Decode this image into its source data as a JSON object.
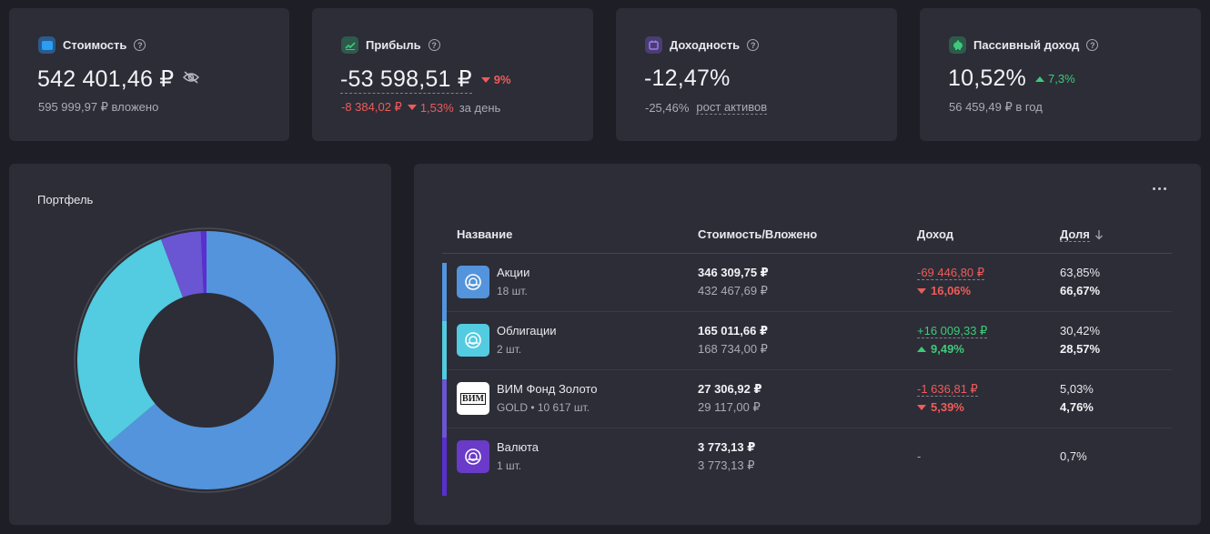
{
  "stats": [
    {
      "title": "Стоимость",
      "icon": "wallet-icon",
      "value": "542 401,46 ₽",
      "sub": "595 999,97 ₽ вложено"
    },
    {
      "title": "Прибыль",
      "icon": "chart-icon",
      "value": "-53 598,51 ₽",
      "change": "9%",
      "sub_amount": "-8 384,02 ₽",
      "sub_change": "1,53%",
      "sub_suffix": "за день"
    },
    {
      "title": "Доходность",
      "icon": "calendar-icon",
      "value": "-12,47%",
      "sub_value": "-25,46%",
      "sub_link": "рост активов"
    },
    {
      "title": "Пассивный доход",
      "icon": "piggy-bank-icon",
      "value": "10,52%",
      "change": "7,3%",
      "sub": "56 459,49 ₽ в год"
    }
  ],
  "portfolio": {
    "title": "Портфель"
  },
  "colors": {
    "stocks": "#5394dc",
    "bonds": "#53cbe0",
    "gold": "#6a55d3",
    "currency": "#5a2fd0"
  },
  "table": {
    "headers": {
      "name": "Название",
      "value": "Стоимость/Вложено",
      "income": "Доход",
      "share": "Доля"
    },
    "rows": [
      {
        "name": "Акции",
        "count": "18 шт.",
        "value": "346 309,75 ₽",
        "invested": "432 467,69 ₽",
        "income": "-69 446,80 ₽",
        "income_pct": "16,06%",
        "direction": "down",
        "share": "63,85%",
        "share_invested": "66,67%"
      },
      {
        "name": "Облигации",
        "count": "2 шт.",
        "value": "165 011,66 ₽",
        "invested": "168 734,00 ₽",
        "income": "+16 009,33 ₽",
        "income_pct": "9,49%",
        "direction": "up",
        "share": "30,42%",
        "share_invested": "28,57%"
      },
      {
        "name": "ВИМ Фонд Золото",
        "count": "GOLD • 10 617 шт.",
        "logo_text": "ВИМ",
        "value": "27 306,92 ₽",
        "invested": "29 117,00 ₽",
        "income": "-1 636,81 ₽",
        "income_pct": "5,39%",
        "direction": "down",
        "share": "5,03%",
        "share_invested": "4,76%"
      },
      {
        "name": "Валюта",
        "count": "1 шт.",
        "value": "3 773,13 ₽",
        "invested": "3 773,13 ₽",
        "income": "-",
        "share": "0,7%"
      }
    ]
  },
  "chart_data": {
    "type": "pie",
    "categories": [
      "Акции",
      "Облигации",
      "ВИМ Фонд Золото",
      "Валюта"
    ],
    "values": [
      63.85,
      30.42,
      5.03,
      0.7
    ],
    "colors": [
      "#5394dc",
      "#53cbe0",
      "#6a55d3",
      "#5a2fd0"
    ],
    "donut": true
  }
}
